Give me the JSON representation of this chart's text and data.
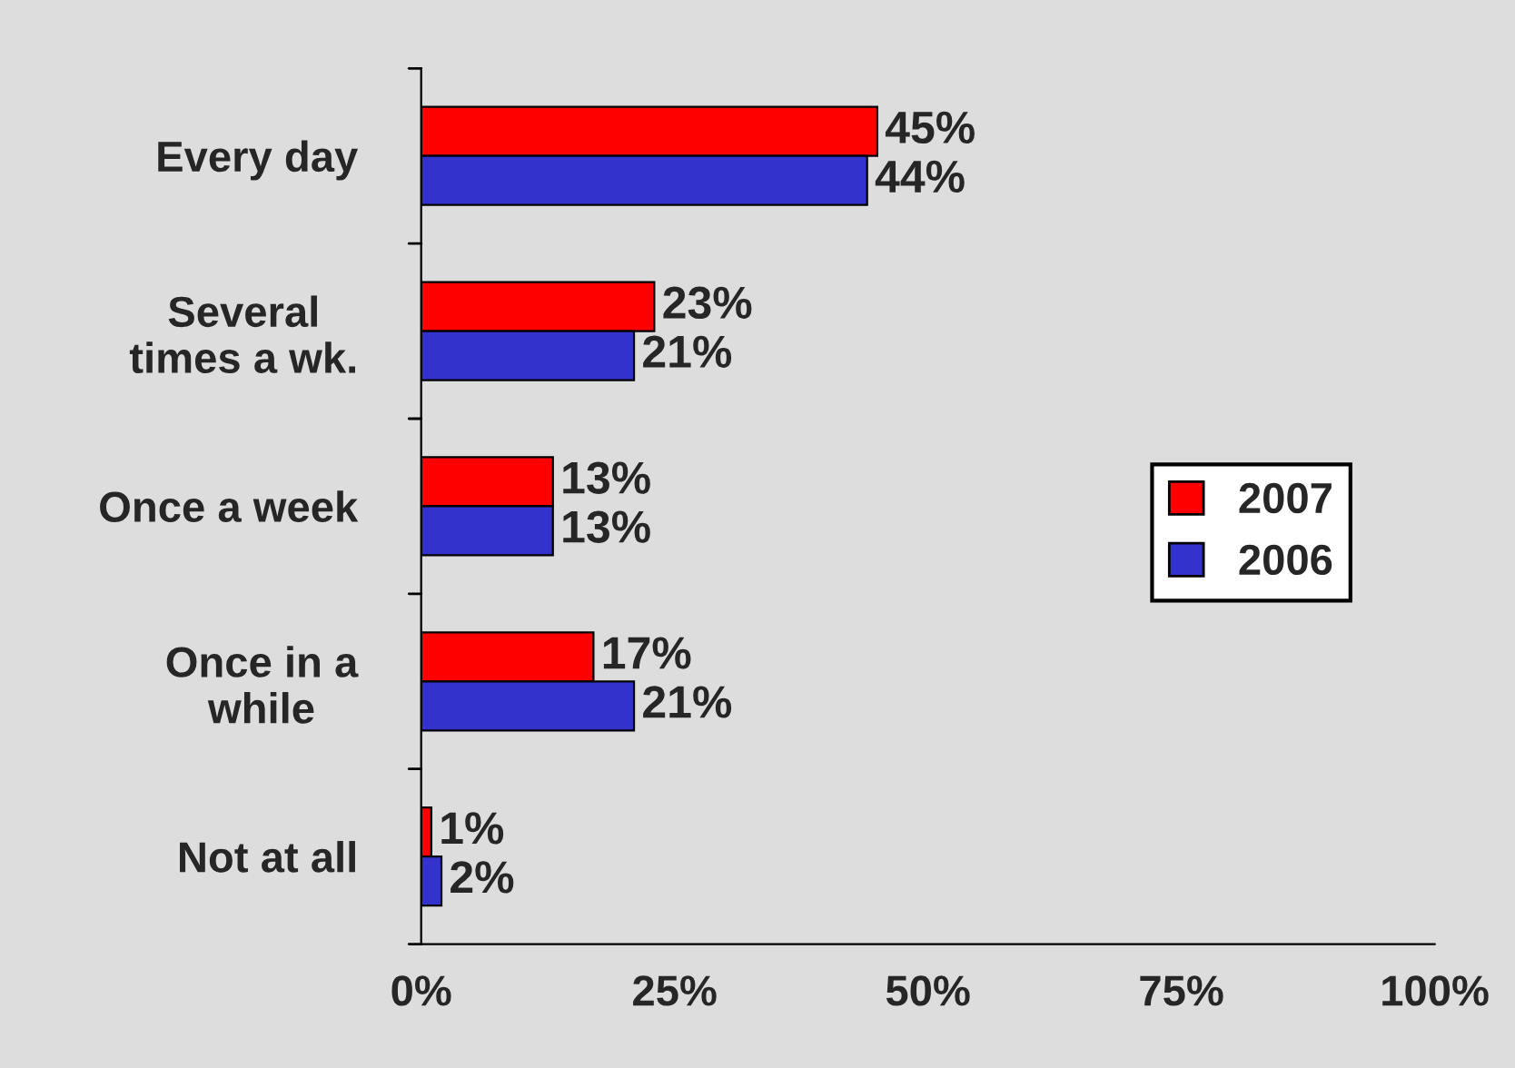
{
  "chart_data": {
    "type": "bar",
    "orientation": "horizontal",
    "categories": [
      "Every day",
      "Several\ntimes a wk.",
      "Once a week",
      "Once in a\nwhile",
      "Not at all"
    ],
    "series": [
      {
        "name": "2007",
        "color": "#ff0000",
        "values": [
          45,
          23,
          13,
          17,
          1
        ],
        "value_labels": [
          "45%",
          "23%",
          "13%",
          "17%",
          "1%"
        ]
      },
      {
        "name": "2006",
        "color": "#3333cc",
        "values": [
          44,
          21,
          13,
          21,
          2
        ],
        "value_labels": [
          "44%",
          "21%",
          "13%",
          "21%",
          "2%"
        ]
      }
    ],
    "xlim": [
      0,
      100
    ],
    "xticks": [
      {
        "value": 0,
        "label": "0%"
      },
      {
        "value": 25,
        "label": "25%"
      },
      {
        "value": 50,
        "label": "50%"
      },
      {
        "value": 75,
        "label": "75%"
      },
      {
        "value": 100,
        "label": "100%"
      }
    ],
    "grid": false,
    "legend": "right"
  }
}
